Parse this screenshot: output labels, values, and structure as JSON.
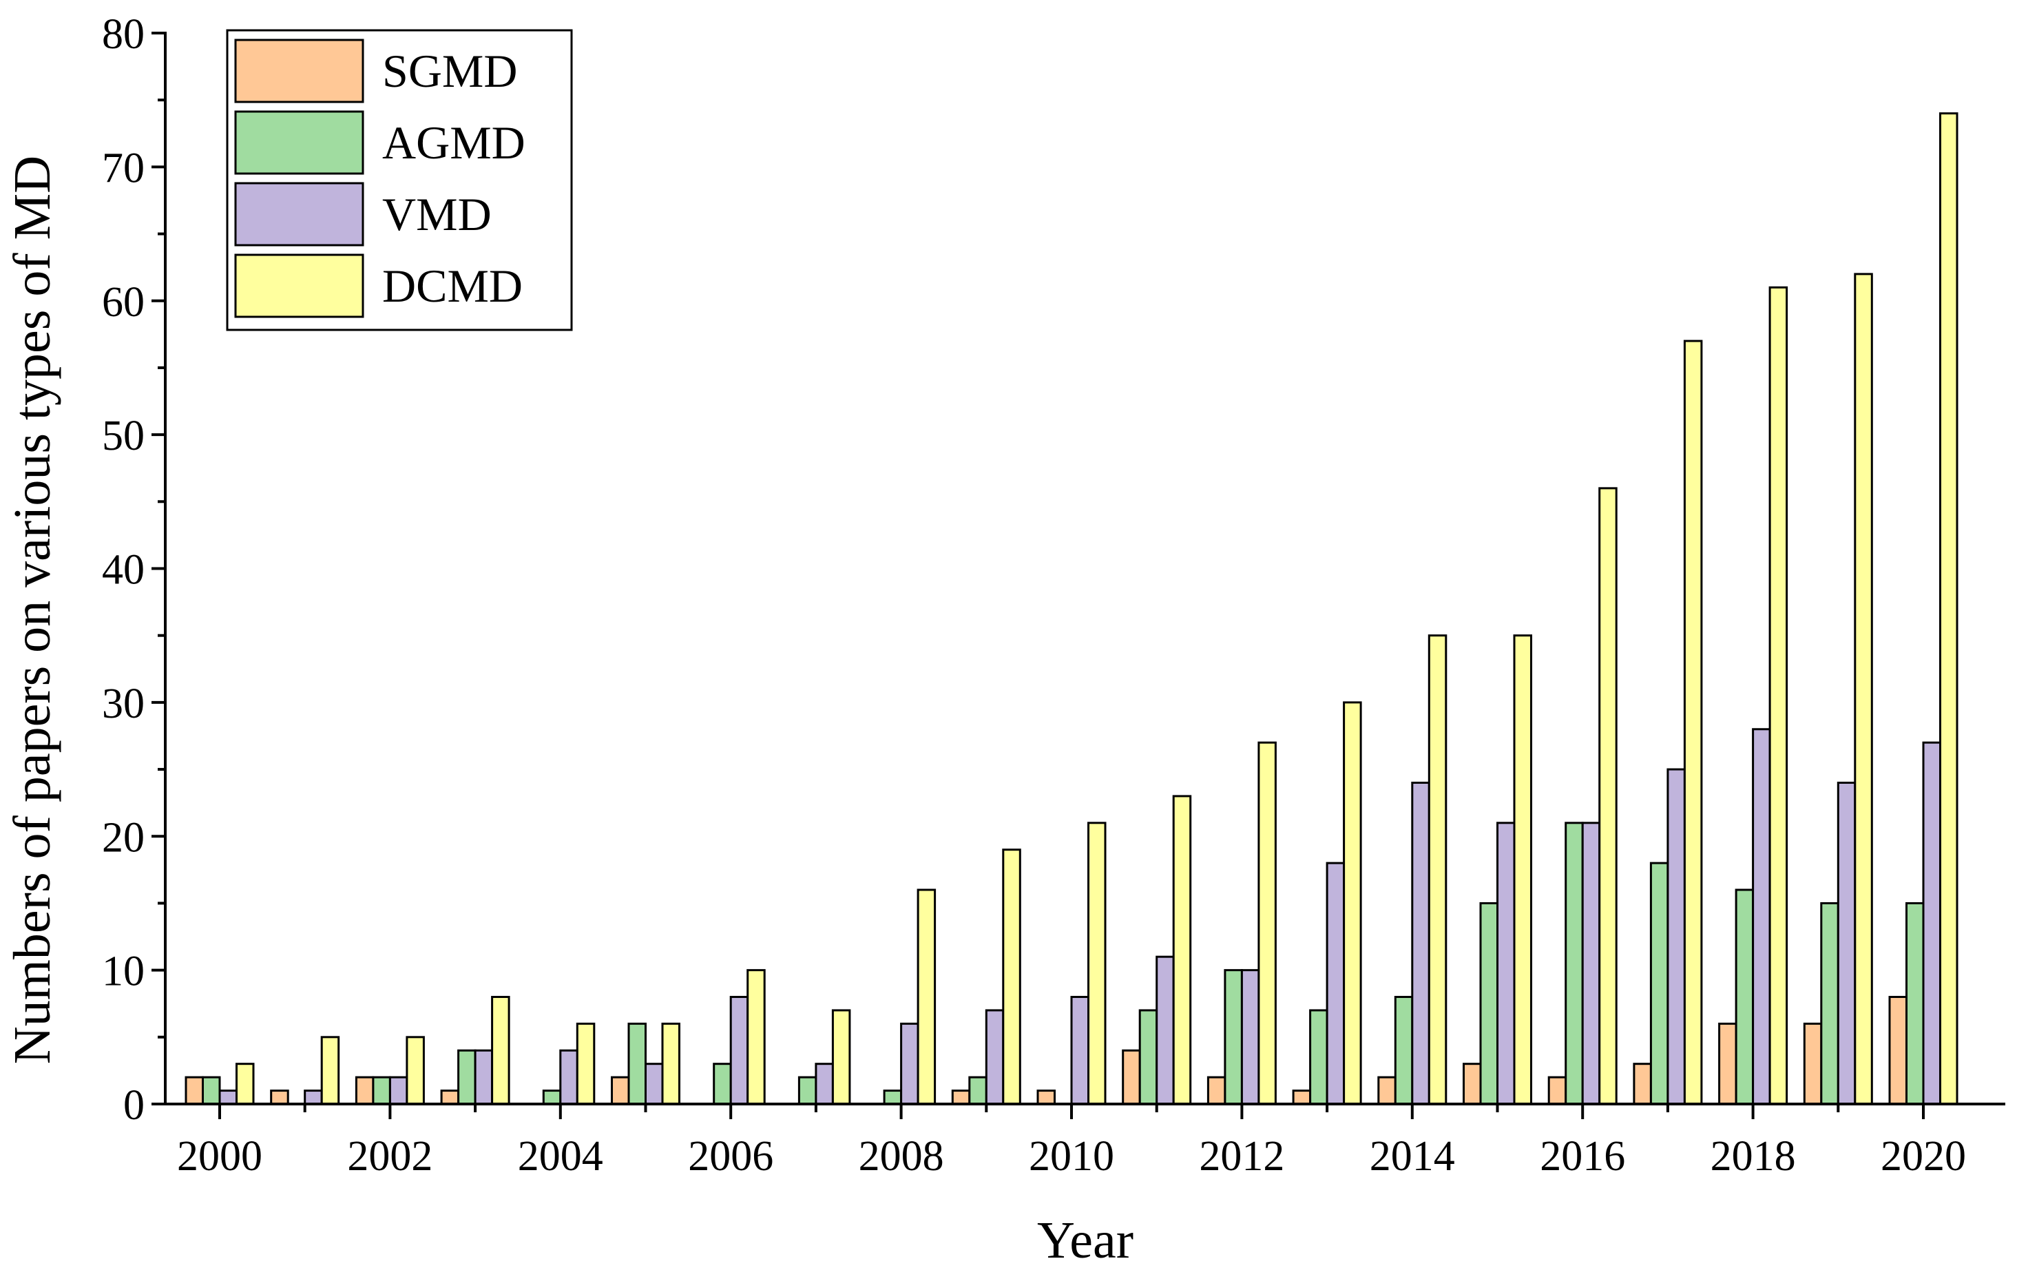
{
  "chart_data": {
    "type": "bar",
    "xlabel": "Year",
    "ylabel": "Numbers of papers on various types of MD",
    "ylim": [
      0,
      80
    ],
    "yticks": [
      "0",
      "10",
      "20",
      "30",
      "40",
      "50",
      "60",
      "70",
      "80"
    ],
    "categories": [
      "2000",
      "2001",
      "2002",
      "2003",
      "2004",
      "2005",
      "2006",
      "2007",
      "2008",
      "2009",
      "2010",
      "2011",
      "2012",
      "2013",
      "2014",
      "2015",
      "2016",
      "2017",
      "2018",
      "2019",
      "2020"
    ],
    "xtick_labels": [
      "2000",
      "2002",
      "2004",
      "2006",
      "2008",
      "2010",
      "2012",
      "2014",
      "2016",
      "2018",
      "2020"
    ],
    "legend_position": "top-left",
    "grid": false,
    "series": [
      {
        "name": "SGMD",
        "color": "#FFC896",
        "values": [
          2,
          1,
          2,
          1,
          0,
          2,
          0,
          0,
          0,
          1,
          1,
          4,
          2,
          1,
          2,
          3,
          2,
          3,
          6,
          6,
          8
        ]
      },
      {
        "name": "AGMD",
        "color": "#A0DCA0",
        "values": [
          2,
          0,
          2,
          4,
          1,
          6,
          3,
          2,
          1,
          2,
          0,
          7,
          10,
          7,
          8,
          15,
          21,
          18,
          16,
          15,
          15
        ]
      },
      {
        "name": "VMD",
        "color": "#C0B4DC",
        "values": [
          1,
          1,
          2,
          4,
          4,
          3,
          8,
          3,
          6,
          7,
          8,
          11,
          10,
          18,
          24,
          21,
          21,
          25,
          28,
          24,
          27
        ]
      },
      {
        "name": "DCMD",
        "color": "#FFFF9E",
        "values": [
          3,
          5,
          5,
          8,
          6,
          6,
          10,
          7,
          16,
          19,
          21,
          23,
          27,
          30,
          35,
          35,
          46,
          57,
          61,
          62,
          74
        ]
      }
    ]
  }
}
